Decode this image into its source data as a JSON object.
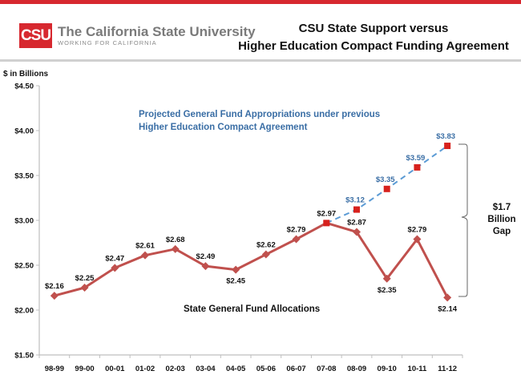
{
  "header": {
    "logo_mark": "CSU",
    "logo_name": "The California State University",
    "logo_tagline": "WORKING FOR CALIFORNIA",
    "title_line1": "CSU State Support versus",
    "title_line2": "Higher Education Compact Funding Agreement"
  },
  "colors": {
    "brand_red": "#d7282f",
    "actual_line": "#c0504d",
    "projected_line": "#5b9bd5",
    "projected_marker": "#d7211d",
    "projected_label": "#3a6ea5"
  },
  "chart_data": {
    "type": "line",
    "title": "CSU State Support versus Higher Education Compact Funding Agreement",
    "ylabel": "$ in Billions",
    "xlabel": "",
    "ylim": [
      1.5,
      4.5
    ],
    "yticks": [
      1.5,
      2.0,
      2.5,
      3.0,
      3.5,
      4.0,
      4.5
    ],
    "ytick_labels": [
      "$1.50",
      "$2.00",
      "$2.50",
      "$3.00",
      "$3.50",
      "$4.00",
      "$4.50"
    ],
    "grid": false,
    "categories": [
      "98-99",
      "99-00",
      "00-01",
      "01-02",
      "02-03",
      "03-04",
      "04-05",
      "05-06",
      "06-07",
      "07-08",
      "08-09",
      "09-10",
      "10-11",
      "11-12"
    ],
    "series": [
      {
        "name": "State General Fund Allocations",
        "values": [
          2.16,
          2.25,
          2.47,
          2.61,
          2.68,
          2.49,
          2.45,
          2.62,
          2.79,
          2.97,
          2.87,
          2.35,
          2.79,
          2.14
        ],
        "labels": [
          "$2.16",
          "$2.25",
          "$2.47",
          "$2.61",
          "$2.68",
          "$2.49",
          "$2.45",
          "$2.62",
          "$2.79",
          "$2.97",
          "$2.87",
          "$2.35",
          "$2.79",
          "$2.14"
        ],
        "label_pos": [
          "above",
          "above",
          "above",
          "above",
          "above",
          "above",
          "below",
          "above",
          "above",
          "above",
          "above",
          "below",
          "above",
          "below"
        ]
      },
      {
        "name": "Projected General Fund Appropriations under previous Higher Education Compact Agreement",
        "values": [
          null,
          null,
          null,
          null,
          null,
          null,
          null,
          null,
          null,
          2.97,
          3.12,
          3.35,
          3.59,
          3.83
        ],
        "labels": [
          null,
          null,
          null,
          null,
          null,
          null,
          null,
          null,
          null,
          null,
          "$3.12",
          "$3.35",
          "$3.59",
          "$3.83"
        ]
      }
    ],
    "annotations": {
      "projected_line1": "Projected General Fund Appropriations under previous",
      "projected_line2": "Higher Education Compact Agreement",
      "actual_caption": "State General Fund Allocations",
      "gap_line1": "$1.7",
      "gap_line2": "Billion",
      "gap_line3": "Gap"
    }
  }
}
